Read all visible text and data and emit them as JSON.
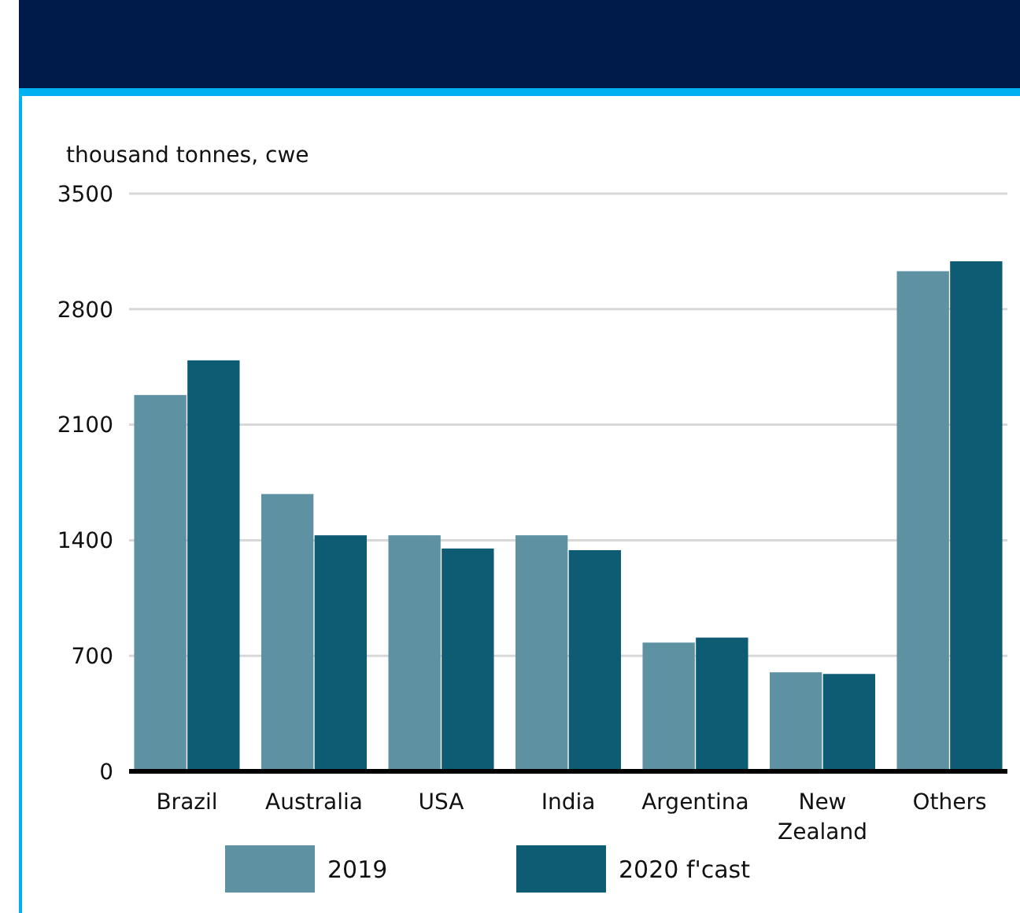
{
  "chart_data": {
    "type": "bar",
    "ylabel": "thousand tonnes, cwe",
    "categories": [
      "Brazil",
      "Australia",
      "USA",
      "India",
      "Argentina",
      "New Zealand",
      "Others"
    ],
    "series": [
      {
        "name": "2019",
        "color": "#5e92a3",
        "values": [
          2280,
          1680,
          1430,
          1430,
          780,
          600,
          3030
        ]
      },
      {
        "name": "2020 f'cast",
        "color": "#0e5b74",
        "values": [
          2490,
          1430,
          1350,
          1340,
          810,
          590,
          3090
        ]
      }
    ],
    "ylim": [
      0,
      3500
    ],
    "yticks": [
      0,
      700,
      1400,
      2100,
      2800,
      3500
    ],
    "grid": "y",
    "legend": "bottom"
  }
}
